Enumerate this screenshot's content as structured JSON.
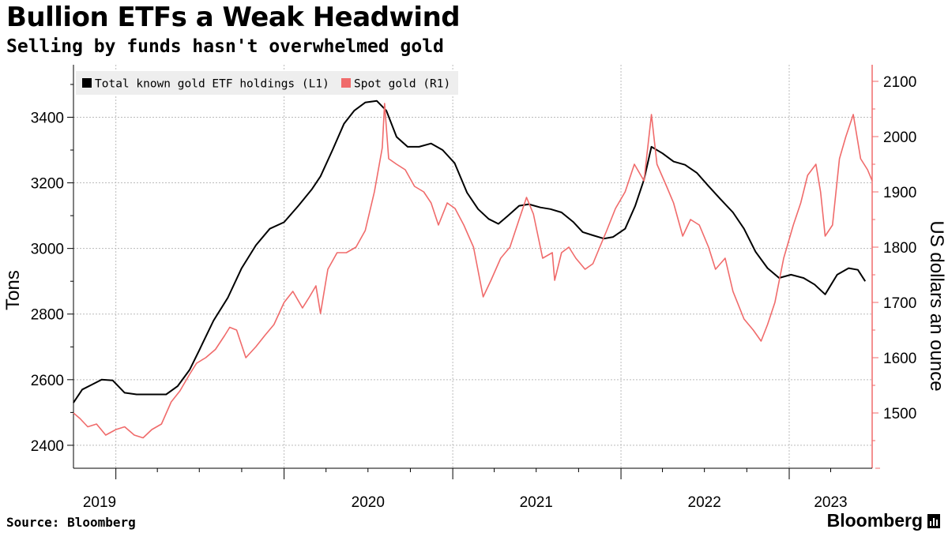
{
  "header": {
    "title": "Bullion ETFs a Weak Headwind",
    "subtitle": "Selling by funds hasn't overwhelmed gold"
  },
  "footer": {
    "source": "Source: Bloomberg",
    "brand": "Bloomberg"
  },
  "chart_data": {
    "type": "line",
    "title": "Bullion ETFs a Weak Headwind",
    "subtitle": "Selling by funds hasn't overwhelmed gold",
    "x_tick_labels": [
      "2019",
      "2020",
      "2021",
      "2022",
      "2023"
    ],
    "x_tick_dates": [
      "2019-01-01",
      "2020-01-01",
      "2021-01-01",
      "2022-01-01",
      "2023-01-01"
    ],
    "x_range": [
      "2018-10-01",
      "2023-06-30"
    ],
    "left_axis": {
      "label": "Tons",
      "range": [
        2330,
        3560
      ],
      "ticks": [
        2400,
        2600,
        2800,
        3000,
        3200,
        3400
      ]
    },
    "right_axis": {
      "label": "US dollars an ounce",
      "range": [
        1400,
        2130
      ],
      "ticks": [
        1500,
        1600,
        1700,
        1800,
        1900,
        2000,
        2100
      ]
    },
    "grid": true,
    "legend_position": "top-left",
    "colors": {
      "etf": "#000000",
      "gold": "#f06b6b",
      "legend_bg": "#eeeeee",
      "grid": "#bbbbbb"
    },
    "series": [
      {
        "name": "Total known gold ETF holdings (L1)",
        "axis": "left",
        "x": [
          "2018-10-01",
          "2018-10-20",
          "2018-11-10",
          "2018-12-01",
          "2018-12-25",
          "2019-01-20",
          "2019-02-15",
          "2019-03-10",
          "2019-04-01",
          "2019-04-20",
          "2019-05-15",
          "2019-06-10",
          "2019-07-01",
          "2019-08-01",
          "2019-09-01",
          "2019-10-01",
          "2019-11-01",
          "2019-12-01",
          "2020-01-01",
          "2020-02-01",
          "2020-03-01",
          "2020-03-20",
          "2020-04-15",
          "2020-05-10",
          "2020-06-01",
          "2020-06-25",
          "2020-07-20",
          "2020-08-10",
          "2020-09-01",
          "2020-09-25",
          "2020-10-20",
          "2020-11-15",
          "2020-12-10",
          "2021-01-05",
          "2021-02-01",
          "2021-02-25",
          "2021-03-20",
          "2021-04-10",
          "2021-05-01",
          "2021-05-25",
          "2021-06-15",
          "2021-07-10",
          "2021-08-01",
          "2021-08-25",
          "2021-09-20",
          "2021-10-10",
          "2021-11-01",
          "2021-11-25",
          "2021-12-15",
          "2022-01-10",
          "2022-02-01",
          "2022-02-20",
          "2022-03-08",
          "2022-04-01",
          "2022-04-25",
          "2022-05-20",
          "2022-06-15",
          "2022-07-10",
          "2022-08-05",
          "2022-09-01",
          "2022-09-25",
          "2022-10-20",
          "2022-11-15",
          "2022-12-10",
          "2023-01-05",
          "2023-02-01",
          "2023-02-25",
          "2023-03-20",
          "2023-04-15",
          "2023-05-10",
          "2023-05-30",
          "2023-06-15"
        ],
        "values": [
          2530,
          2570,
          2585,
          2600,
          2598,
          2560,
          2555,
          2555,
          2555,
          2555,
          2580,
          2630,
          2690,
          2780,
          2850,
          2940,
          3010,
          3060,
          3080,
          3130,
          3180,
          3220,
          3300,
          3380,
          3420,
          3445,
          3450,
          3420,
          3340,
          3310,
          3310,
          3320,
          3300,
          3260,
          3170,
          3120,
          3090,
          3075,
          3100,
          3130,
          3135,
          3125,
          3120,
          3110,
          3080,
          3050,
          3040,
          3030,
          3035,
          3060,
          3130,
          3210,
          3310,
          3290,
          3265,
          3255,
          3230,
          3190,
          3150,
          3110,
          3060,
          2990,
          2940,
          2910,
          2920,
          2910,
          2890,
          2860,
          2920,
          2940,
          2935,
          2900
        ]
      },
      {
        "name": "Spot gold (R1)",
        "axis": "right",
        "x": [
          "2018-10-01",
          "2018-10-15",
          "2018-11-01",
          "2018-11-20",
          "2018-12-10",
          "2019-01-01",
          "2019-01-20",
          "2019-02-10",
          "2019-03-01",
          "2019-03-20",
          "2019-04-10",
          "2019-05-01",
          "2019-05-20",
          "2019-06-10",
          "2019-06-25",
          "2019-07-15",
          "2019-08-05",
          "2019-08-25",
          "2019-09-05",
          "2019-09-20",
          "2019-10-10",
          "2019-11-01",
          "2019-11-20",
          "2019-12-10",
          "2020-01-01",
          "2020-01-20",
          "2020-02-10",
          "2020-02-25",
          "2020-03-10",
          "2020-03-20",
          "2020-04-05",
          "2020-04-25",
          "2020-05-15",
          "2020-06-05",
          "2020-06-25",
          "2020-07-15",
          "2020-08-01",
          "2020-08-06",
          "2020-08-15",
          "2020-09-01",
          "2020-09-20",
          "2020-10-10",
          "2020-10-30",
          "2020-11-15",
          "2020-12-01",
          "2020-12-20",
          "2021-01-06",
          "2021-01-25",
          "2021-02-15",
          "2021-03-08",
          "2021-03-25",
          "2021-04-15",
          "2021-05-05",
          "2021-05-25",
          "2021-06-10",
          "2021-06-25",
          "2021-07-15",
          "2021-08-05",
          "2021-08-10",
          "2021-08-25",
          "2021-09-10",
          "2021-09-25",
          "2021-10-15",
          "2021-11-01",
          "2021-11-16",
          "2021-12-01",
          "2021-12-20",
          "2022-01-10",
          "2022-01-30",
          "2022-02-20",
          "2022-03-08",
          "2022-03-20",
          "2022-04-10",
          "2022-04-25",
          "2022-05-15",
          "2022-06-01",
          "2022-06-20",
          "2022-07-10",
          "2022-07-25",
          "2022-08-15",
          "2022-09-01",
          "2022-09-25",
          "2022-10-15",
          "2022-11-01",
          "2022-11-15",
          "2022-12-01",
          "2022-12-20",
          "2023-01-10",
          "2023-01-26",
          "2023-02-10",
          "2023-02-28",
          "2023-03-10",
          "2023-03-20",
          "2023-04-05",
          "2023-04-20",
          "2023-05-04",
          "2023-05-20",
          "2023-06-05",
          "2023-06-20",
          "2023-06-30"
        ],
        "values": [
          1500,
          1490,
          1475,
          1480,
          1460,
          1470,
          1475,
          1460,
          1455,
          1470,
          1480,
          1520,
          1540,
          1570,
          1590,
          1600,
          1615,
          1640,
          1655,
          1650,
          1600,
          1620,
          1640,
          1660,
          1700,
          1720,
          1690,
          1710,
          1730,
          1680,
          1760,
          1790,
          1790,
          1800,
          1830,
          1900,
          1980,
          2060,
          1960,
          1950,
          1940,
          1910,
          1900,
          1880,
          1840,
          1880,
          1870,
          1840,
          1800,
          1710,
          1740,
          1780,
          1800,
          1850,
          1890,
          1860,
          1780,
          1790,
          1740,
          1790,
          1800,
          1780,
          1760,
          1770,
          1800,
          1830,
          1870,
          1900,
          1950,
          1920,
          2040,
          1950,
          1910,
          1880,
          1820,
          1850,
          1840,
          1800,
          1760,
          1780,
          1720,
          1670,
          1650,
          1630,
          1660,
          1700,
          1780,
          1840,
          1880,
          1930,
          1950,
          1900,
          1820,
          1840,
          1960,
          2000,
          2040,
          1960,
          1940,
          1920
        ]
      }
    ]
  }
}
